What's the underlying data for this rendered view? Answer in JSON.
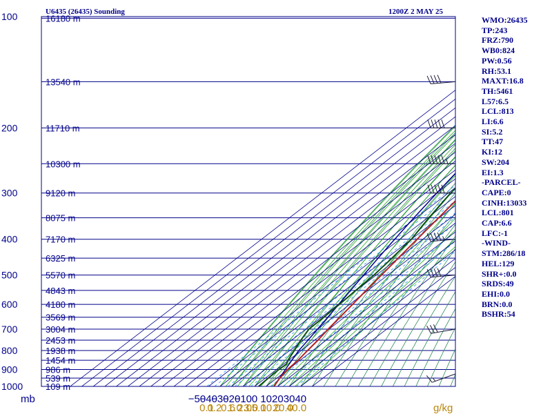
{
  "title_left": "U6435 (26435) Sounding",
  "title_right": "1200Z  2 MAY 25",
  "stats": [
    "WMO:26435",
    "TP:243",
    "FRZ:790",
    "WB0:824",
    "PW:0.56",
    "RH:53.1",
    "MAXT:16.8",
    "TH:5461",
    "L57:6.5",
    "LCL:813",
    "LI:6.6",
    "SI:5.2",
    "TT:47",
    "KI:12",
    "SW:204",
    "EI:1.3",
    "-PARCEL-",
    "CAPE:0",
    "CINH:13033",
    "LCL:801",
    "CAP:6.6",
    "LFC:-1",
    "-WIND-",
    "STM:286/18",
    "HEL:129",
    "SHR+:0.0",
    "SRDS:49",
    "EHI:0.0",
    "BRN:0.0",
    "BSHR:54"
  ],
  "colors": {
    "isobar": "#00008b",
    "isotherm": "#00008b",
    "dry_adiabat": "#2e8b57",
    "moist_adiabat": "#22aa22",
    "mixing_ratio": "#1e90ff",
    "temperature": "#b22222",
    "dewpoint": "#0b4f12",
    "parcel": "#00008b",
    "wind_barb": "#1a1a3a",
    "mixing_label": "#b8860b"
  },
  "chart_data": {
    "type": "skew-t",
    "x_unit_label": "mb",
    "mixing_unit_label": "g/kg",
    "y_scale": "log-pressure",
    "pressure_levels": [
      100,
      200,
      300,
      400,
      500,
      600,
      700,
      800,
      900,
      1000
    ],
    "height_labels": [
      {
        "p": 101,
        "label": "16180 m"
      },
      {
        "p": 150,
        "label": "13540 m"
      },
      {
        "p": 200,
        "label": "11710 m"
      },
      {
        "p": 250,
        "label": "10300 m"
      },
      {
        "p": 300,
        "label": "9120 m"
      },
      {
        "p": 350,
        "label": "8075 m"
      },
      {
        "p": 400,
        "label": "7170 m"
      },
      {
        "p": 450,
        "label": "6325 m"
      },
      {
        "p": 500,
        "label": "5570 m"
      },
      {
        "p": 550,
        "label": "4843 m"
      },
      {
        "p": 600,
        "label": "4180 m"
      },
      {
        "p": 650,
        "label": "3569 m"
      },
      {
        "p": 700,
        "label": "3004 m"
      },
      {
        "p": 750,
        "label": "2453 m"
      },
      {
        "p": 800,
        "label": "1938 m"
      },
      {
        "p": 850,
        "label": "1454 m"
      },
      {
        "p": 900,
        "label": "986 m"
      },
      {
        "p": 950,
        "label": "539 m"
      },
      {
        "p": 1000,
        "label": "109 m"
      }
    ],
    "temperature_ticks": [
      -50,
      -40,
      -30,
      -20,
      -10,
      0,
      10,
      20,
      30,
      40
    ],
    "mixing_ratio_ticks": [
      0.1,
      0.2,
      0.6,
      1.0,
      2.0,
      3.0,
      5.0,
      10.0,
      20.0,
      40.0
    ],
    "mixing_ratio_labels": [
      "0.1",
      "0.2",
      "0.6",
      "1.0",
      "2.0",
      "3.0",
      "5.0",
      "10.0",
      "20.0",
      "40.0"
    ],
    "temperature_profile": [
      {
        "p": 1000,
        "t": 16.8
      },
      {
        "p": 950,
        "t": 12.5
      },
      {
        "p": 900,
        "t": 9.5
      },
      {
        "p": 850,
        "t": 8.2
      },
      {
        "p": 800,
        "t": 5.5
      },
      {
        "p": 750,
        "t": 2.8
      },
      {
        "p": 700,
        "t": -0.8
      },
      {
        "p": 650,
        "t": -4.0
      },
      {
        "p": 600,
        "t": -7.5
      },
      {
        "p": 550,
        "t": -11.5
      },
      {
        "p": 500,
        "t": -15.5
      },
      {
        "p": 450,
        "t": -20.0
      },
      {
        "p": 400,
        "t": -25.0
      },
      {
        "p": 350,
        "t": -30.5
      },
      {
        "p": 300,
        "t": -37.0
      },
      {
        "p": 270,
        "t": -42.0
      },
      {
        "p": 243,
        "t": -48.0
      },
      {
        "p": 200,
        "t": -46.0
      },
      {
        "p": 150,
        "t": -43.0
      },
      {
        "p": 120,
        "t": -42.0
      },
      {
        "p": 100,
        "t": -42.0
      }
    ],
    "dewpoint_profile": [
      {
        "p": 1000,
        "t": 3.5
      },
      {
        "p": 950,
        "t": 2.5
      },
      {
        "p": 900,
        "t": 2.0
      },
      {
        "p": 870,
        "t": 2.5
      },
      {
        "p": 850,
        "t": -0.5
      },
      {
        "p": 800,
        "t": -6.0
      },
      {
        "p": 750,
        "t": -12.0
      },
      {
        "p": 700,
        "t": -17.5
      },
      {
        "p": 650,
        "t": -18.0
      },
      {
        "p": 600,
        "t": -19.0
      },
      {
        "p": 550,
        "t": -20.5
      },
      {
        "p": 500,
        "t": -22.0
      },
      {
        "p": 450,
        "t": -25.5
      },
      {
        "p": 400,
        "t": -30.0
      },
      {
        "p": 350,
        "t": -39.0
      },
      {
        "p": 300,
        "t": -48.0
      },
      {
        "p": 250,
        "t": -55.0
      },
      {
        "p": 200,
        "t": -63.0
      },
      {
        "p": 150,
        "t": -70.0
      },
      {
        "p": 120,
        "t": -73.0
      },
      {
        "p": 100,
        "t": -77.0
      }
    ],
    "parcel_profile": [
      {
        "p": 1000,
        "t": 16.8
      },
      {
        "p": 950,
        "t": 12.2
      },
      {
        "p": 900,
        "t": 7.6
      },
      {
        "p": 850,
        "t": 2.8
      },
      {
        "p": 801,
        "t": -2.0
      },
      {
        "p": 750,
        "t": -5.8
      },
      {
        "p": 700,
        "t": -10.0
      },
      {
        "p": 650,
        "t": -14.5
      },
      {
        "p": 600,
        "t": -19.5
      },
      {
        "p": 550,
        "t": -25.0
      },
      {
        "p": 500,
        "t": -31.0
      },
      {
        "p": 450,
        "t": -37.5
      },
      {
        "p": 400,
        "t": -44.5
      },
      {
        "p": 350,
        "t": -52.0
      },
      {
        "p": 300,
        "t": -60.0
      },
      {
        "p": 250,
        "t": -69.0
      },
      {
        "p": 200,
        "t": -79.0
      },
      {
        "p": 150,
        "t": -91.0
      },
      {
        "p": 120,
        "t": -100.0
      },
      {
        "p": 100,
        "t": -107.0
      }
    ],
    "wind_barbs": [
      {
        "p": 925,
        "dir": 250,
        "speed_kt": 15
      },
      {
        "p": 700,
        "dir": 260,
        "speed_kt": 30
      },
      {
        "p": 500,
        "dir": 265,
        "speed_kt": 40
      },
      {
        "p": 400,
        "dir": 265,
        "speed_kt": 45
      },
      {
        "p": 300,
        "dir": 270,
        "speed_kt": 50
      },
      {
        "p": 250,
        "dir": 270,
        "speed_kt": 55
      },
      {
        "p": 200,
        "dir": 270,
        "speed_kt": 50
      },
      {
        "p": 150,
        "dir": 265,
        "speed_kt": 40
      }
    ],
    "grid": true,
    "legend": "none"
  }
}
